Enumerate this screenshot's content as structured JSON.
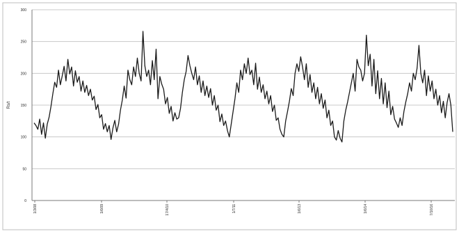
{
  "chart_data": {
    "type": "line",
    "title": "",
    "xlabel": "",
    "ylabel": "Rs/t",
    "ylim": [
      0,
      300
    ],
    "y_ticks": [
      0,
      50,
      100,
      150,
      200,
      250,
      300
    ],
    "grid": "horizontal",
    "legend": "none",
    "x_tick_labels": [
      "1/3/08",
      "1/6/09",
      "17/4/10",
      "1/7/11",
      "1/6/13",
      "1/6/14",
      "7/10/16"
    ],
    "series": [
      {
        "color": "#1a1a1a",
        "values": [
          122,
          118,
          112,
          128,
          104,
          122,
          98,
          120,
          131,
          148,
          168,
          186,
          178,
          205,
          182,
          196,
          211,
          188,
          222,
          199,
          210,
          180,
          204,
          186,
          195,
          172,
          188,
          170,
          181,
          165,
          175,
          158,
          164,
          143,
          151,
          130,
          135,
          112,
          121,
          108,
          118,
          96,
          114,
          126,
          108,
          120,
          142,
          158,
          180,
          161,
          205,
          190,
          182,
          210,
          195,
          224,
          200,
          188,
          266,
          212,
          195,
          205,
          182,
          220,
          190,
          238,
          160,
          195,
          183,
          175,
          152,
          162,
          137,
          148,
          125,
          138,
          128,
          130,
          145,
          170,
          190,
          203,
          228,
          212,
          200,
          190,
          210,
          182,
          196,
          170,
          188,
          165,
          180,
          162,
          176,
          150,
          165,
          142,
          150,
          124,
          136,
          118,
          125,
          110,
          100,
          120,
          140,
          160,
          185,
          170,
          205,
          190,
          215,
          200,
          224,
          198,
          205,
          182,
          216,
          175,
          194,
          170,
          182,
          160,
          172,
          152,
          165,
          140,
          150,
          126,
          130,
          112,
          104,
          100,
          125,
          140,
          156,
          176,
          165,
          200,
          215,
          203,
          226,
          210,
          190,
          215,
          178,
          198,
          170,
          185,
          160,
          178,
          152,
          168,
          145,
          158,
          130,
          142,
          118,
          125,
          100,
          95,
          110,
          98,
          92,
          125,
          142,
          155,
          170,
          185,
          200,
          172,
          222,
          210,
          205,
          188,
          200,
          260,
          212,
          230,
          180,
          222,
          168,
          204,
          160,
          192,
          152,
          185,
          146,
          172,
          135,
          148,
          128,
          122,
          115,
          130,
          118,
          140,
          155,
          168,
          185,
          172,
          200,
          190,
          208,
          244,
          200,
          185,
          205,
          165,
          196,
          172,
          188,
          160,
          175,
          150,
          165,
          138,
          156,
          130,
          154,
          168,
          150,
          108
        ]
      }
    ]
  }
}
